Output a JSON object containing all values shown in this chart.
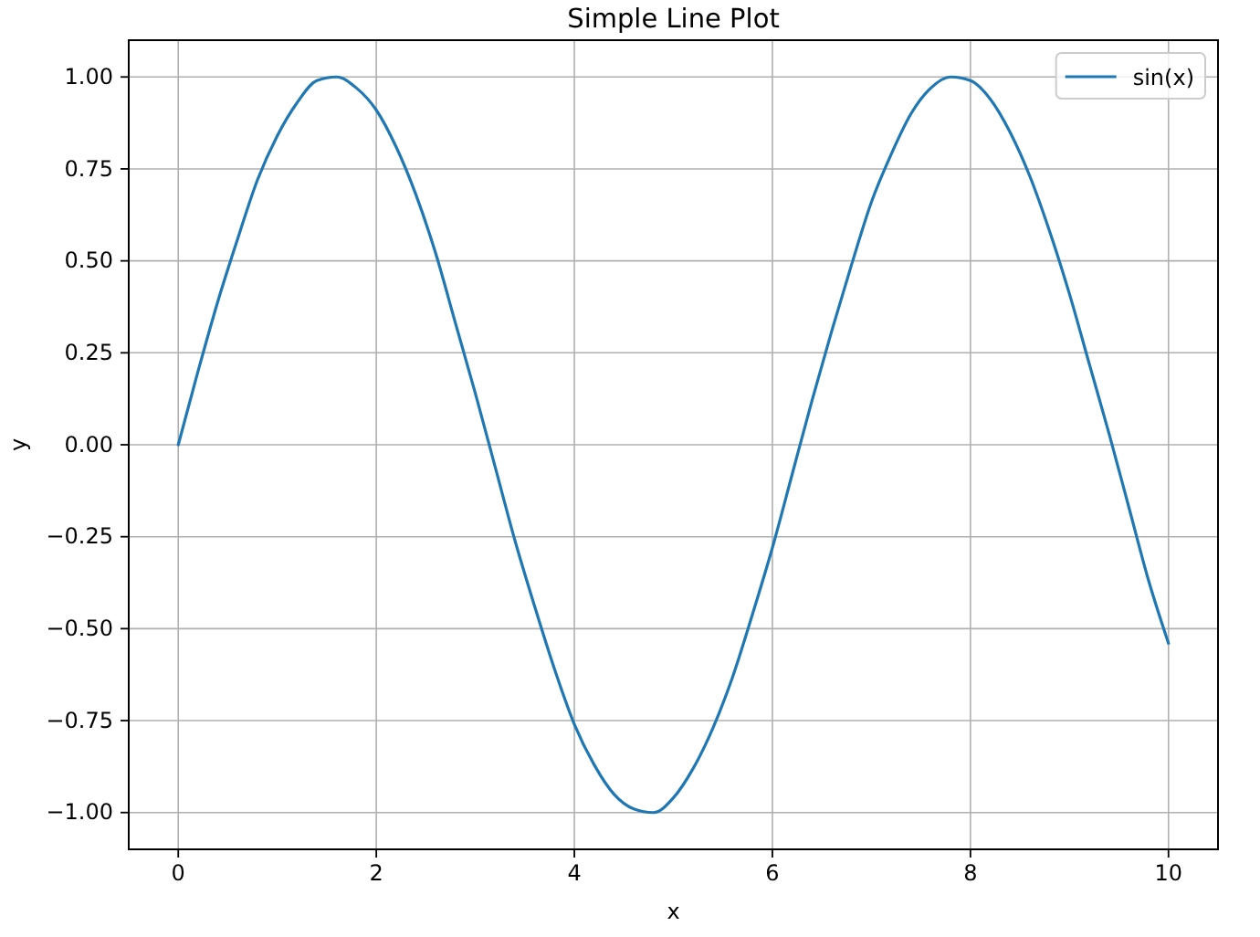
{
  "chart_data": {
    "type": "line",
    "title": "Simple Line Plot",
    "xlabel": "x",
    "ylabel": "y",
    "x": [
      0,
      0.2,
      0.4,
      0.6,
      0.8,
      1,
      1.2,
      1.4,
      1.6,
      1.8,
      2,
      2.2,
      2.4,
      2.6,
      2.8,
      3,
      3.2,
      3.4,
      3.6,
      3.8,
      4,
      4.2,
      4.4,
      4.6,
      4.8,
      5,
      5.2,
      5.4,
      5.6,
      5.8,
      6,
      6.2,
      6.4,
      6.6,
      6.8,
      7,
      7.2,
      7.4,
      7.6,
      7.8,
      8,
      8.2,
      8.4,
      8.6,
      8.8,
      9,
      9.2,
      9.4,
      9.6,
      9.8,
      10
    ],
    "series": [
      {
        "name": "sin(x)",
        "color": "#1f77b4",
        "values": [
          0,
          0.2,
          0.39,
          0.56,
          0.72,
          0.84,
          0.93,
          0.99,
          1,
          0.97,
          0.91,
          0.81,
          0.68,
          0.52,
          0.33,
          0.14,
          -0.06,
          -0.26,
          -0.44,
          -0.61,
          -0.76,
          -0.87,
          -0.95,
          -0.99,
          -1,
          -0.96,
          -0.88,
          -0.77,
          -0.63,
          -0.46,
          -0.28,
          -0.08,
          0.12,
          0.31,
          0.49,
          0.66,
          0.79,
          0.9,
          0.97,
          1,
          0.99,
          0.94,
          0.85,
          0.73,
          0.58,
          0.41,
          0.22,
          0.03,
          -0.17,
          -0.37,
          -0.54
        ]
      }
    ],
    "xlim": [
      -0.5,
      10.5
    ],
    "ylim": [
      -1.1,
      1.1
    ],
    "xticks": [
      0,
      2,
      4,
      6,
      8,
      10
    ],
    "yticks": [
      {
        "value": -1,
        "label": "−1.00"
      },
      {
        "value": -0.75,
        "label": "−0.75"
      },
      {
        "value": -0.5,
        "label": "−0.50"
      },
      {
        "value": -0.25,
        "label": "−0.25"
      },
      {
        "value": 0,
        "label": "0.00"
      },
      {
        "value": 0.25,
        "label": "0.25"
      },
      {
        "value": 0.5,
        "label": "0.50"
      },
      {
        "value": 0.75,
        "label": "0.75"
      },
      {
        "value": 1,
        "label": "1.00"
      }
    ],
    "grid": true,
    "legend": "top right",
    "line_style": "solid"
  }
}
